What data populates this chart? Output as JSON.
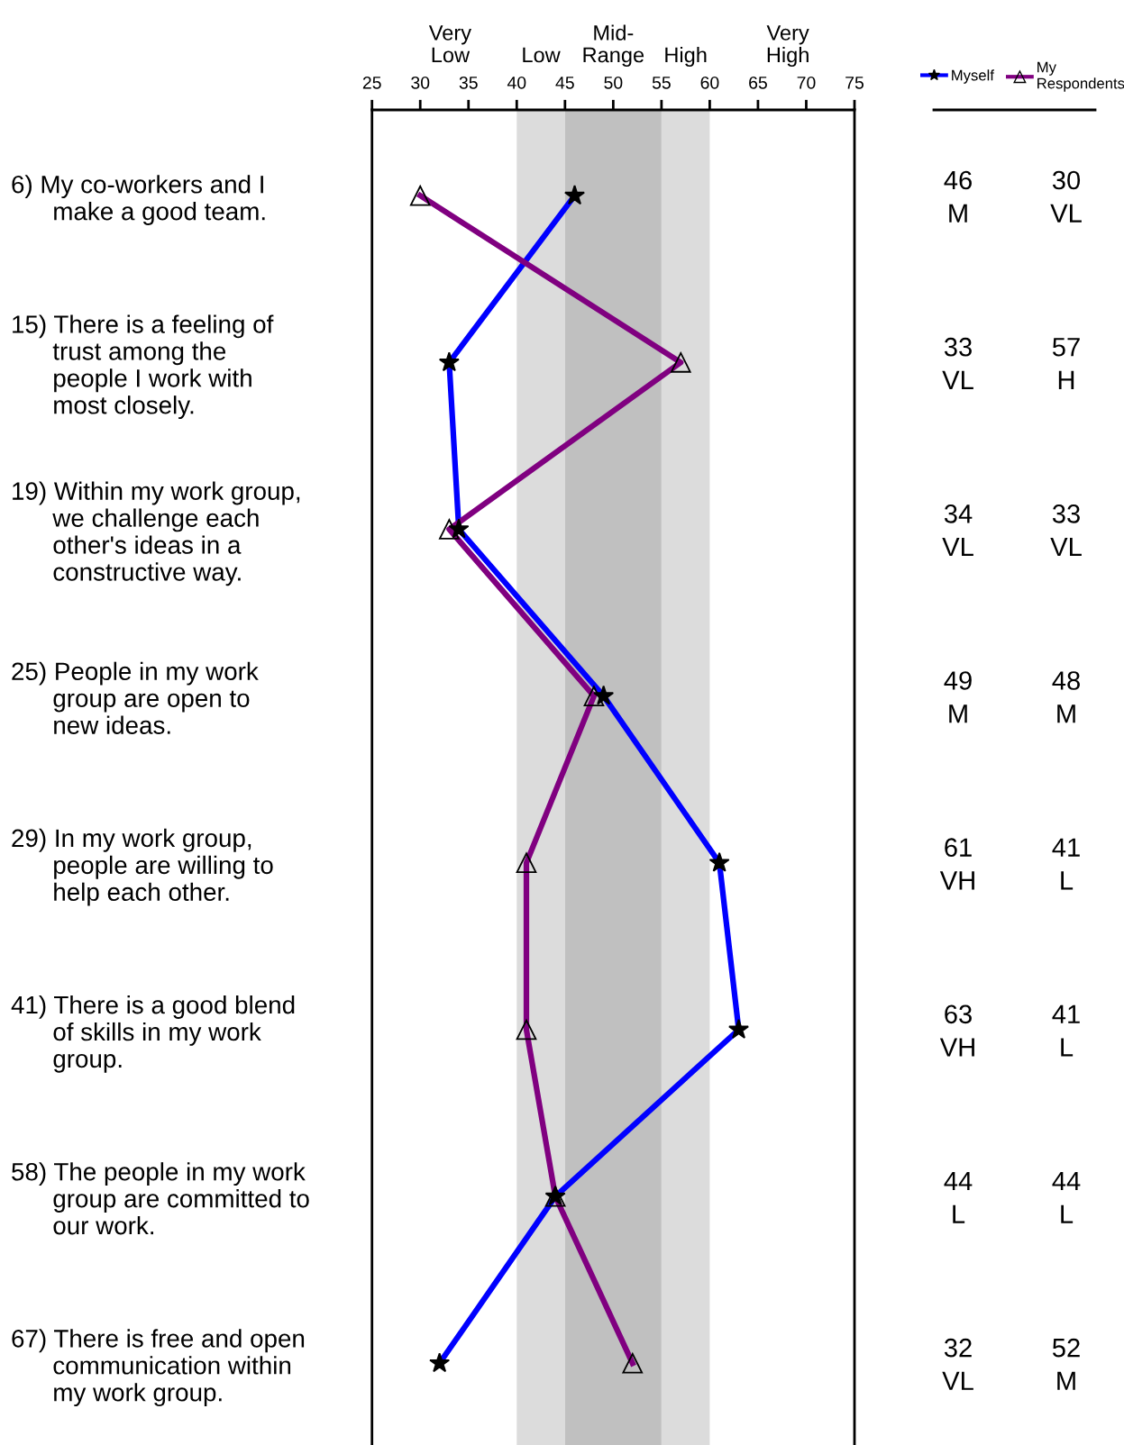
{
  "chart_data": {
    "type": "line",
    "orientation": "horizontal",
    "categories": [
      "6) My co-workers and I\nmake a good team.",
      "15) There is a feeling of\ntrust among the\npeople I work with\nmost closely.",
      "19) Within my work group,\nwe challenge each\nother's ideas in a\nconstructive way.",
      "25) People in my work\ngroup are open to\nnew ideas.",
      "29) In my work group,\npeople are willing to\nhelp each other.",
      "41) There is a good blend\nof skills in my work\ngroup.",
      "58) The people in my work\ngroup are committed to\nour work.",
      "67) There is free and open\ncommunication within\nmy work group."
    ],
    "series": [
      {
        "name": "Myself",
        "color": "#0000ff",
        "marker": "star",
        "values": [
          46,
          33,
          34,
          49,
          61,
          63,
          44,
          32
        ],
        "value_labels": [
          "46\nM",
          "33\nVL",
          "34\nVL",
          "49\nM",
          "61\nVH",
          "63\nVH",
          "44\nL",
          "32\nVL"
        ]
      },
      {
        "name": "My\nRespondents",
        "color": "#800080",
        "marker": "triangle",
        "values": [
          30,
          57,
          33,
          48,
          41,
          41,
          44,
          52
        ],
        "value_labels": [
          "30\nVL",
          "57\nH",
          "33\nVL",
          "48\nM",
          "41\nL",
          "41\nL",
          "44\nL",
          "52\nM"
        ]
      }
    ],
    "xlim": [
      25,
      75
    ],
    "xticks": [
      25,
      30,
      35,
      40,
      45,
      50,
      55,
      60,
      65,
      70,
      75
    ],
    "annotations": [
      "Very\nLow",
      "Very\nHigh"
    ],
    "bands": [
      {
        "axis": "x",
        "from": 40,
        "to": 45,
        "label": "Low",
        "color": "#dcdcdc"
      },
      {
        "axis": "x",
        "from": 45,
        "to": 55,
        "label": "Mid-\nRange",
        "color": "#c0c0c0"
      },
      {
        "axis": "x",
        "from": 55,
        "to": 60,
        "label": "High",
        "color": "#dcdcdc"
      }
    ],
    "line_style": "solid",
    "grid": false,
    "legend": "top right"
  }
}
